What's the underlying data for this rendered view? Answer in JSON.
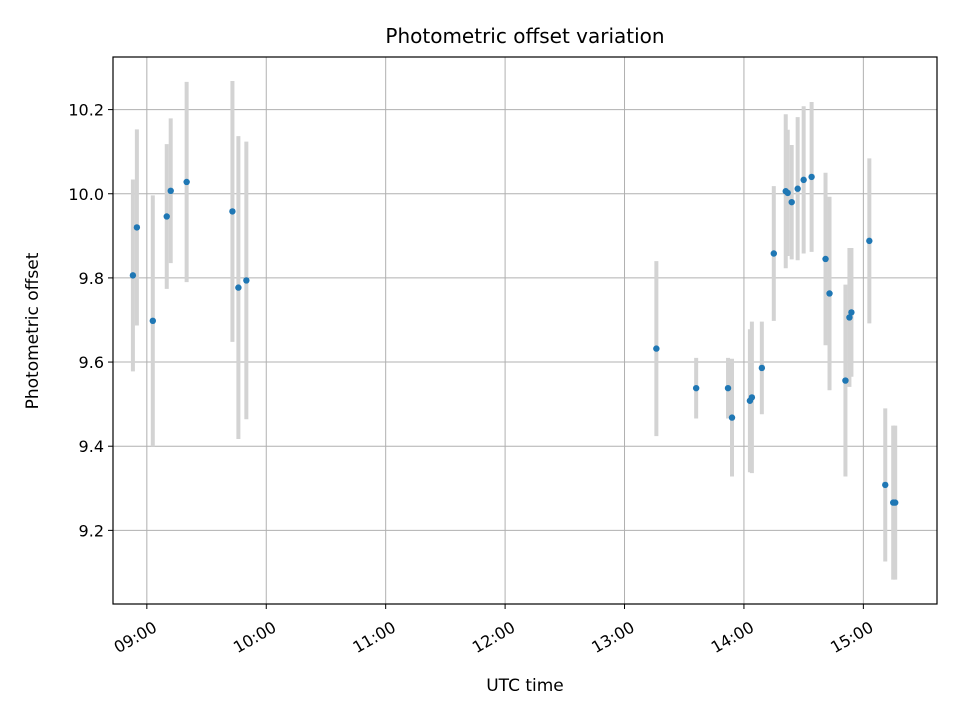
{
  "chart_data": {
    "type": "scatter",
    "title": "Photometric offset variation",
    "xlabel": "UTC time",
    "ylabel": "Photometric offset",
    "x_is_time": true,
    "xlim": [
      "08:43",
      "15:37"
    ],
    "ylim": [
      9.025,
      10.325
    ],
    "xticks": [
      "09:00",
      "10:00",
      "11:00",
      "12:00",
      "13:00",
      "14:00",
      "15:00"
    ],
    "yticks": [
      9.2,
      9.4,
      9.6,
      9.8,
      10.0,
      10.2
    ],
    "ytick_labels": [
      "9.2",
      "9.4",
      "9.6",
      "9.8",
      "10.0",
      "10.2"
    ],
    "grid": true,
    "point_color": "#1f77b4",
    "errorbar_color": "#d3d3d3",
    "series": [
      {
        "points": [
          {
            "x": "08:53",
            "y": 9.806,
            "err": 0.228
          },
          {
            "x": "08:55",
            "y": 9.92,
            "err": 0.233
          },
          {
            "x": "09:03",
            "y": 9.698,
            "err": 0.298
          },
          {
            "x": "09:10",
            "y": 9.946,
            "err": 0.172
          },
          {
            "x": "09:12",
            "y": 10.007,
            "err": 0.172
          },
          {
            "x": "09:20",
            "y": 10.028,
            "err": 0.238
          },
          {
            "x": "09:43",
            "y": 9.958,
            "err": 0.31
          },
          {
            "x": "09:46",
            "y": 9.777,
            "err": 0.36
          },
          {
            "x": "09:50",
            "y": 9.794,
            "err": 0.33
          },
          {
            "x": "13:16",
            "y": 9.632,
            "err": 0.208
          },
          {
            "x": "13:36",
            "y": 9.538,
            "err": 0.072
          },
          {
            "x": "13:52",
            "y": 9.538,
            "err": 0.072
          },
          {
            "x": "13:54",
            "y": 9.468,
            "err": 0.14
          },
          {
            "x": "14:03",
            "y": 9.508,
            "err": 0.17
          },
          {
            "x": "14:04",
            "y": 9.516,
            "err": 0.18
          },
          {
            "x": "14:09",
            "y": 9.586,
            "err": 0.11
          },
          {
            "x": "14:15",
            "y": 9.858,
            "err": 0.16
          },
          {
            "x": "14:21",
            "y": 10.006,
            "err": 0.183
          },
          {
            "x": "14:22",
            "y": 10.002,
            "err": 0.15
          },
          {
            "x": "14:24",
            "y": 9.98,
            "err": 0.136
          },
          {
            "x": "14:27",
            "y": 10.012,
            "err": 0.17
          },
          {
            "x": "14:30",
            "y": 10.033,
            "err": 0.175
          },
          {
            "x": "14:34",
            "y": 10.04,
            "err": 0.178
          },
          {
            "x": "14:41",
            "y": 9.845,
            "err": 0.205
          },
          {
            "x": "14:43",
            "y": 9.763,
            "err": 0.23
          },
          {
            "x": "14:51",
            "y": 9.556,
            "err": 0.228
          },
          {
            "x": "14:53",
            "y": 9.706,
            "err": 0.165
          },
          {
            "x": "14:54",
            "y": 9.718,
            "err": 0.153
          },
          {
            "x": "15:03",
            "y": 9.888,
            "err": 0.196
          },
          {
            "x": "15:11",
            "y": 9.308,
            "err": 0.182
          },
          {
            "x": "15:15",
            "y": 9.266,
            "err": 0.183
          },
          {
            "x": "15:16",
            "y": 9.266,
            "err": 0.183
          }
        ]
      }
    ]
  }
}
